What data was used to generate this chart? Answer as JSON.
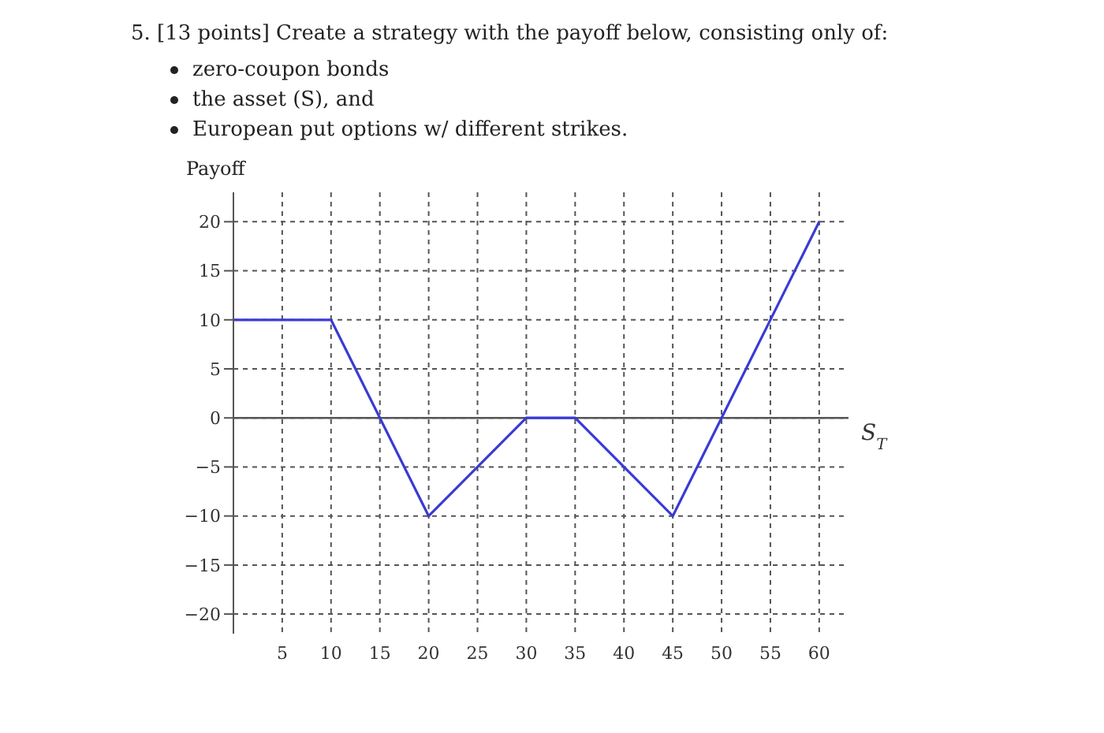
{
  "chart_data": {
    "type": "line",
    "title": "5. [13 points] Create a strategy with the payoff below, consisting only of:",
    "annotations": [
      "zero-coupon bonds",
      "the asset (S), and",
      "European put options w/ different strikes."
    ],
    "xlabel": "S$_{T}$",
    "ylabel": "Payoff",
    "x": [
      0,
      10,
      20,
      30,
      35,
      45,
      60
    ],
    "series": [
      {
        "color": "#3a3ad6",
        "values": [
          10,
          10,
          -10,
          0,
          0,
          -10,
          20
        ]
      }
    ],
    "xlim": [
      0,
      63
    ],
    "xticks": [
      5,
      10,
      15,
      20,
      25,
      30,
      35,
      40,
      45,
      50,
      55,
      60
    ],
    "ylim": [
      -22,
      23
    ],
    "yticks": [
      -20,
      -15,
      -10,
      -5,
      0,
      5,
      10,
      15,
      20
    ],
    "grid": true,
    "legend": false,
    "marker": "none",
    "line_style": "solid"
  }
}
